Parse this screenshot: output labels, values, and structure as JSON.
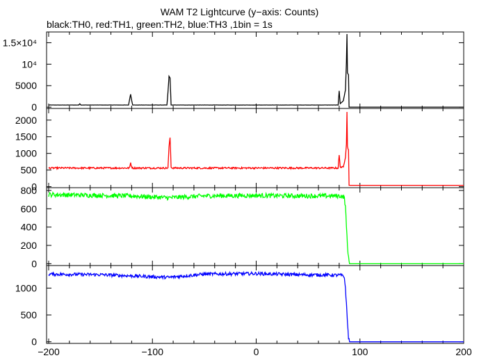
{
  "chart_data": {
    "type": "line",
    "title": "WAM T2 Lightcurve (y−axis: Counts)",
    "subtitle": "black:TH0, red:TH1, green:TH2, blue:TH3 ,1bin = 1s",
    "xlim": [
      -202,
      200
    ],
    "xticks": [
      -200,
      -100,
      0,
      100,
      200
    ],
    "xtick_labels": [
      "−200",
      "−100",
      "0",
      "100",
      "200"
    ],
    "panels": [
      {
        "name": "TH0",
        "color": "#000000",
        "ylim": [
          -300,
          17500
        ],
        "yticks": [
          0,
          5000,
          10000,
          15000
        ],
        "ytick_labels": [
          "0",
          "5000",
          "10⁴",
          "1.5×10⁴"
        ],
        "baseline": 500,
        "noise": 20,
        "dropout_value": 0,
        "points": [
          [
            -200,
            500
          ],
          [
            -171,
            500
          ],
          [
            -170,
            800
          ],
          [
            -169,
            500
          ],
          [
            -123,
            500
          ],
          [
            -122,
            1800
          ],
          [
            -121,
            3000
          ],
          [
            -120,
            1600
          ],
          [
            -119,
            500
          ],
          [
            -86,
            500
          ],
          [
            -85,
            3500
          ],
          [
            -84,
            7200
          ],
          [
            -83,
            6800
          ],
          [
            -82,
            500
          ],
          [
            79,
            500
          ],
          [
            80,
            3800
          ],
          [
            81,
            800
          ],
          [
            84,
            1500
          ],
          [
            86,
            4000
          ],
          [
            87,
            10500
          ],
          [
            87.5,
            17000
          ],
          [
            88,
            8000
          ],
          [
            89,
            7500
          ],
          [
            89.5,
            0
          ],
          [
            200,
            0
          ]
        ]
      },
      {
        "name": "TH1",
        "color": "#ff0000",
        "ylim": [
          -30,
          2350
        ],
        "yticks": [
          0,
          500,
          1000,
          1500,
          2000
        ],
        "ytick_labels": [
          "0",
          "500",
          "1000",
          "1500",
          "2000"
        ],
        "baseline": 560,
        "noise": 25,
        "dropout_value": 40,
        "points": [
          [
            -200,
            560
          ],
          [
            -122,
            560
          ],
          [
            -121,
            720
          ],
          [
            -120,
            600
          ],
          [
            -119,
            560
          ],
          [
            -85,
            560
          ],
          [
            -84,
            1200
          ],
          [
            -83,
            1480
          ],
          [
            -82,
            600
          ],
          [
            -81,
            560
          ],
          [
            79,
            560
          ],
          [
            80,
            950
          ],
          [
            81,
            600
          ],
          [
            84,
            580
          ],
          [
            86,
            900
          ],
          [
            87,
            1300
          ],
          [
            87.5,
            2250
          ],
          [
            88,
            1200
          ],
          [
            89,
            1100
          ],
          [
            89.5,
            40
          ],
          [
            200,
            40
          ]
        ]
      },
      {
        "name": "TH2",
        "color": "#00ff00",
        "ylim": [
          -20,
          830
        ],
        "yticks": [
          0,
          200,
          400,
          600,
          800
        ],
        "ytick_labels": [
          "0",
          "200",
          "400",
          "600",
          "800"
        ],
        "baseline": 750,
        "noise": 25,
        "dropout_value": 0,
        "points": [
          [
            -200,
            755
          ],
          [
            -120,
            740
          ],
          [
            -84,
            720
          ],
          [
            -50,
            740
          ],
          [
            0,
            745
          ],
          [
            40,
            740
          ],
          [
            82,
            740
          ],
          [
            85,
            720
          ],
          [
            86,
            620
          ],
          [
            87,
            400
          ],
          [
            88,
            200
          ],
          [
            89,
            60
          ],
          [
            90,
            0
          ],
          [
            200,
            0
          ]
        ]
      },
      {
        "name": "TH3",
        "color": "#0000ff",
        "ylim": [
          -30,
          1420
        ],
        "yticks": [
          0,
          500,
          1000
        ],
        "ytick_labels": [
          "0",
          "500",
          "1000"
        ],
        "baseline": 1250,
        "noise": 30,
        "dropout_value": 0,
        "points": [
          [
            -200,
            1260
          ],
          [
            -150,
            1250
          ],
          [
            -84,
            1200
          ],
          [
            -50,
            1260
          ],
          [
            0,
            1270
          ],
          [
            40,
            1250
          ],
          [
            82,
            1240
          ],
          [
            85,
            1200
          ],
          [
            86,
            1000
          ],
          [
            87,
            700
          ],
          [
            88,
            350
          ],
          [
            89,
            80
          ],
          [
            90,
            0
          ],
          [
            200,
            0
          ]
        ]
      }
    ]
  }
}
